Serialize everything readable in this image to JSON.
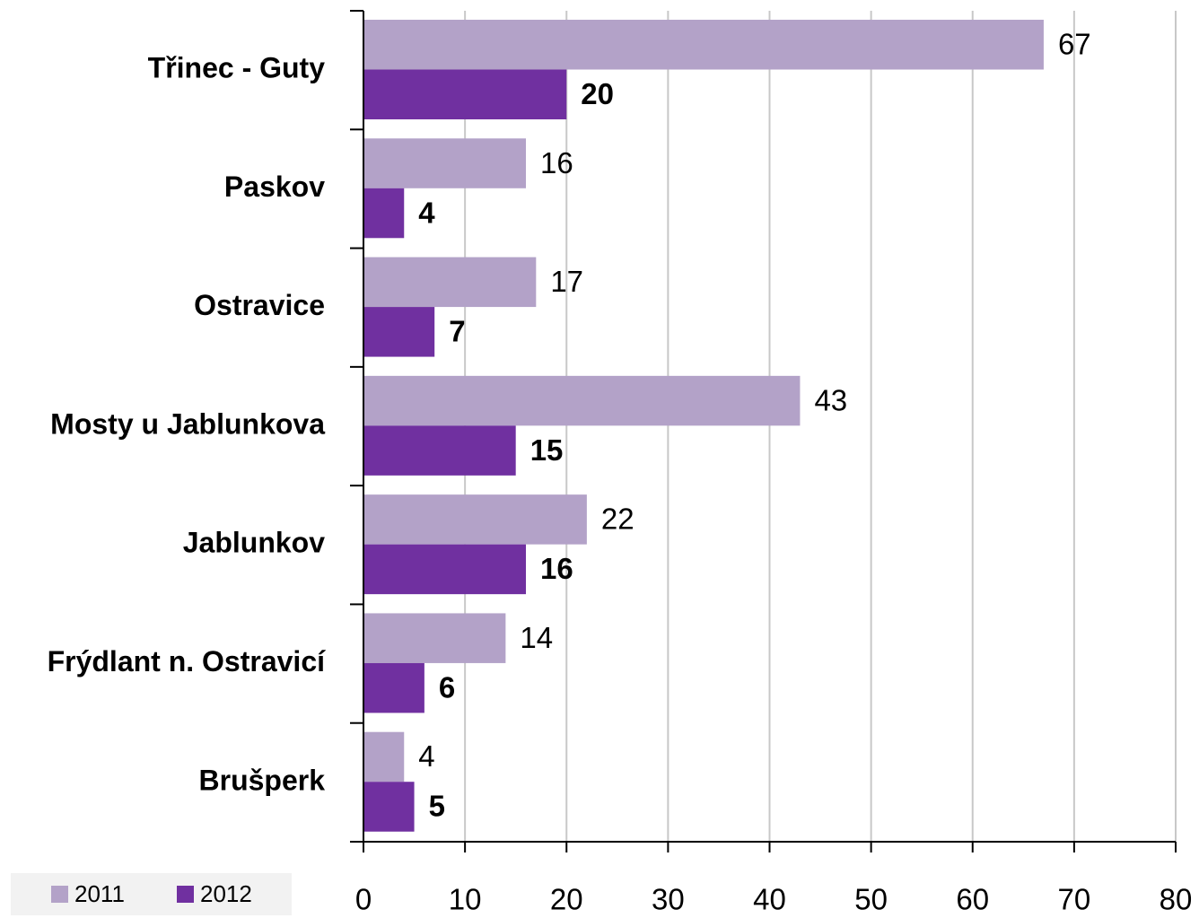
{
  "chart_data": {
    "type": "bar",
    "orientation": "horizontal",
    "categories": [
      "Třinec - Guty",
      "Paskov",
      "Ostravice",
      "Mosty u Jablunkova",
      "Jablunkov",
      "Frýdlant n. Ostravicí",
      "Brušperk"
    ],
    "series": [
      {
        "name": "2011",
        "color": "#b3a2c8",
        "values": [
          67,
          16,
          17,
          43,
          22,
          14,
          4
        ]
      },
      {
        "name": "2012",
        "color": "#7030a0",
        "values": [
          20,
          4,
          7,
          15,
          16,
          6,
          5
        ]
      }
    ],
    "xlim": [
      0,
      80
    ],
    "xticks": [
      0,
      10,
      20,
      30,
      40,
      50,
      60,
      70,
      80
    ],
    "grid": true,
    "legend": "bottom-left"
  }
}
